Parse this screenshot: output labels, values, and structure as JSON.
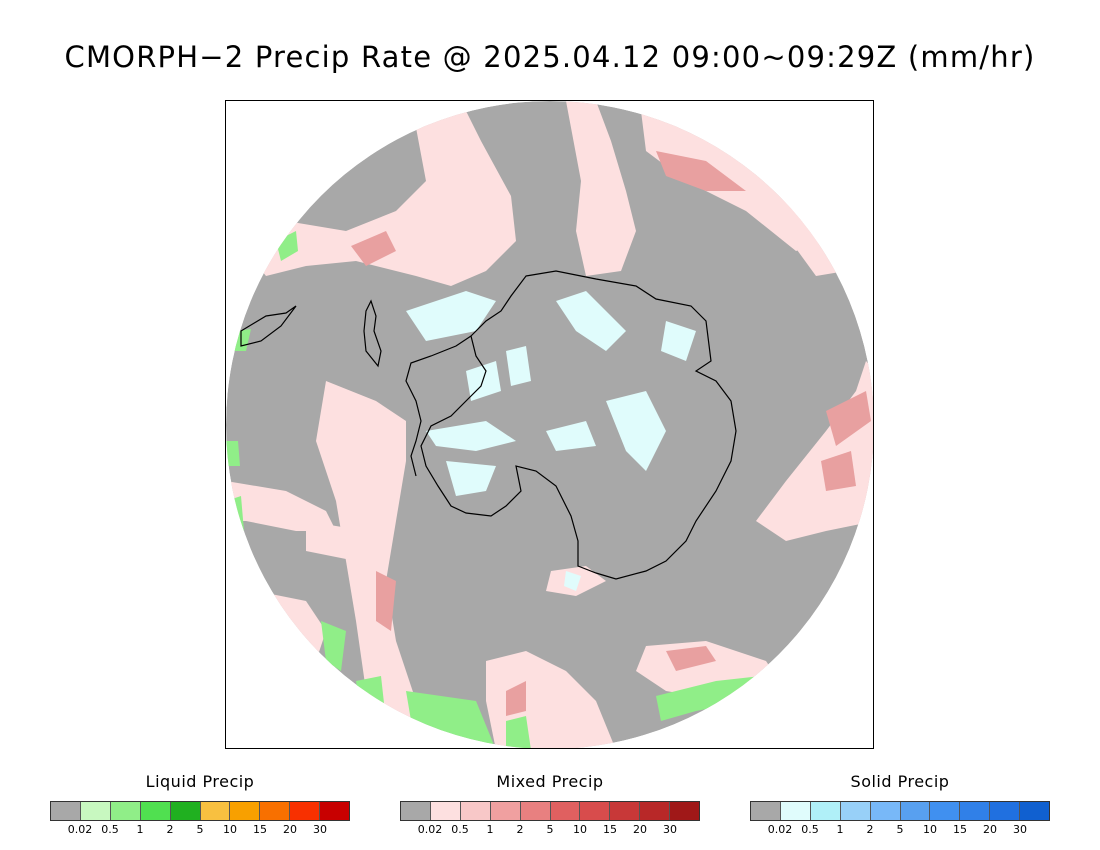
{
  "title": "CMORPH−2 Precip Rate @ 2025.04.12 09:00~09:29Z (mm/hr)",
  "map": {
    "projection": "south-polar-stereographic",
    "background_color": "#a8a8a8",
    "region": "Antarctica"
  },
  "legends": [
    {
      "id": "liquid",
      "title": "Liquid Precip",
      "colors": [
        "#a8a8a8",
        "#c8f8c0",
        "#90ee88",
        "#50e050",
        "#20b020",
        "#f8c040",
        "#f8a000",
        "#f87000",
        "#f83000",
        "#c80000"
      ],
      "tick_labels": [
        "0.02",
        "0.5",
        "1",
        "2",
        "5",
        "10",
        "15",
        "20",
        "30"
      ]
    },
    {
      "id": "mixed",
      "title": "Mixed Precip",
      "colors": [
        "#a8a8a8",
        "#fde0e0",
        "#f8c8c8",
        "#f0a0a0",
        "#e88080",
        "#e06060",
        "#d84c4c",
        "#c83838",
        "#b82828",
        "#a01818"
      ],
      "tick_labels": [
        "0.02",
        "0.5",
        "1",
        "2",
        "5",
        "10",
        "15",
        "20",
        "30"
      ]
    },
    {
      "id": "solid",
      "title": "Solid Precip",
      "colors": [
        "#a8a8a8",
        "#e0fcfc",
        "#b0f0f8",
        "#98d0f8",
        "#78b8f8",
        "#58a0f0",
        "#4090f0",
        "#3080e8",
        "#2070e0",
        "#1060d0"
      ],
      "tick_labels": [
        "0.02",
        "0.5",
        "1",
        "2",
        "5",
        "10",
        "15",
        "20",
        "30"
      ]
    }
  ]
}
